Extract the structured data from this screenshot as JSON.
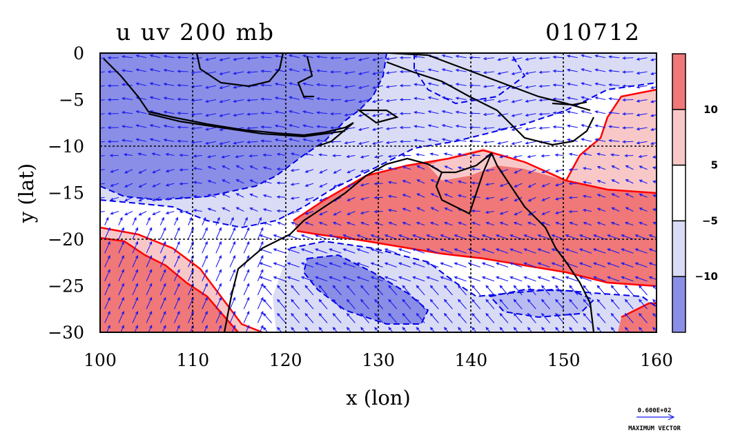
{
  "chart_data": {
    "type": "heatmap",
    "title": "u uv 200 mb",
    "date_label": "010712",
    "xlabel": "x (lon)",
    "ylabel": "y (lat)",
    "xlim": [
      100,
      160
    ],
    "ylim": [
      -30,
      0
    ],
    "x_ticks": [
      100,
      110,
      120,
      130,
      140,
      150,
      160
    ],
    "y_ticks": [
      0,
      -5,
      -10,
      -15,
      -20,
      -25,
      -30
    ],
    "grid": true,
    "overlay": "wind vectors (uv)",
    "colorbar": {
      "levels": [
        -10,
        -5,
        5,
        10
      ],
      "tick_labels": [
        "10",
        "5",
        "−5",
        "−10"
      ],
      "colors": [
        "#f07878",
        "#f8c8c8",
        "#ffffff",
        "#dadcf6",
        "#8a8ee6"
      ]
    },
    "reference_vector": {
      "value": "0.600E+02",
      "label": "MAXIMUM VECTOR"
    },
    "colors": {
      "positive_strong": "#f07878",
      "positive_weak": "#f8c8c8",
      "negative_weak": "#dadcf6",
      "negative_strong": "#8a8ee6",
      "positive_contour": "#ff0000",
      "negative_contour": "#0000e6",
      "vectors": "#1a1af0",
      "coastline": "#000000"
    }
  }
}
